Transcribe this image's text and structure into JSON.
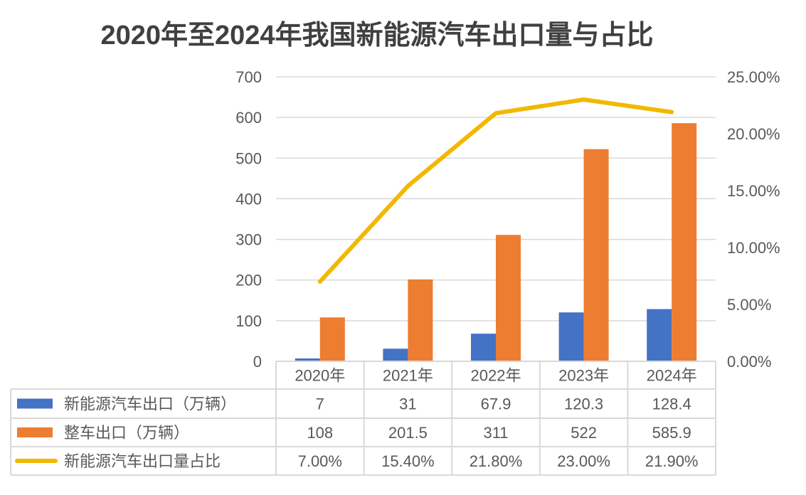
{
  "title": "2020年至2024年我国新能源汽车出口量与占比",
  "chart_data": {
    "type": "bar",
    "title": "2020年至2024年我国新能源汽车出口量与占比",
    "categories": [
      "2020年",
      "2021年",
      "2022年",
      "2023年",
      "2024年"
    ],
    "series": [
      {
        "name": "新能源汽车出口（万辆）",
        "type": "bar",
        "axis": "left",
        "color": "#4472C4",
        "values": [
          7,
          31,
          67.9,
          120.3,
          128.4
        ],
        "labels": [
          "7",
          "31",
          "67.9",
          "120.3",
          "128.4"
        ]
      },
      {
        "name": "整车出口（万辆）",
        "type": "bar",
        "axis": "left",
        "color": "#ED7D31",
        "values": [
          108,
          201.5,
          311,
          522,
          585.9
        ],
        "labels": [
          "108",
          "201.5",
          "311",
          "522",
          "585.9"
        ]
      },
      {
        "name": "新能源汽车出口量占比",
        "type": "line",
        "axis": "right",
        "color": "#F2B800",
        "values": [
          7.0,
          15.4,
          21.8,
          23.0,
          21.9
        ],
        "labels": [
          "7.00%",
          "15.40%",
          "21.80%",
          "23.00%",
          "21.90%"
        ]
      }
    ],
    "y_left": {
      "ylim": [
        0,
        700
      ],
      "ticks": [
        0,
        100,
        200,
        300,
        400,
        500,
        600,
        700
      ],
      "tick_labels": [
        "0",
        "100",
        "200",
        "300",
        "400",
        "500",
        "600",
        "700"
      ]
    },
    "y_right": {
      "ylim": [
        0,
        25
      ],
      "ticks": [
        0,
        5,
        10,
        15,
        20,
        25
      ],
      "tick_labels": [
        "0.00%",
        "5.00%",
        "10.00%",
        "15.00%",
        "20.00%",
        "25.00%"
      ]
    },
    "xlabel": "",
    "ylabel": "",
    "grid": true,
    "legend": "data-table-bottom"
  }
}
